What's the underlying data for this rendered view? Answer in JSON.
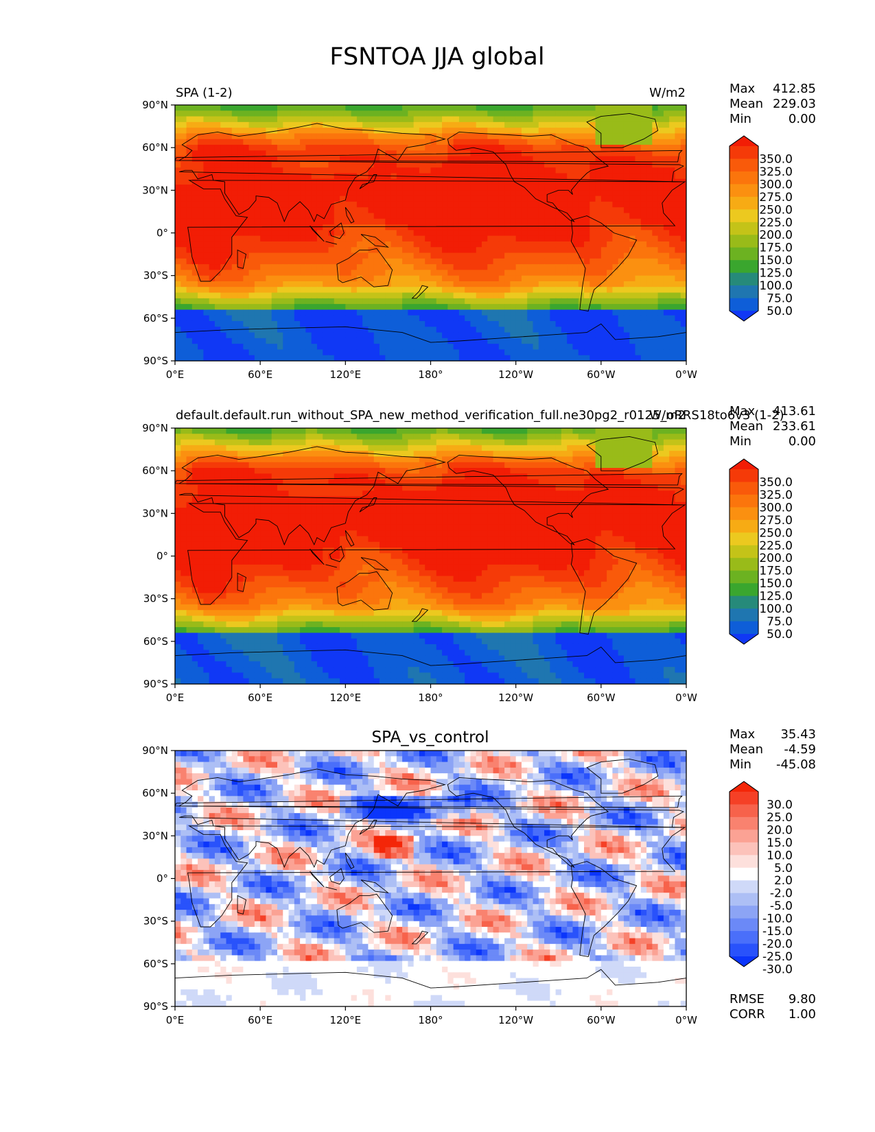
{
  "figure": {
    "title": "FSNTOA JJA global"
  },
  "colors": {
    "abs_levels": [
      "#1038f5",
      "#0e5ed8",
      "#1f76b0",
      "#268a7a",
      "#3aa62e",
      "#6cb221",
      "#99bb19",
      "#c4c318",
      "#ecc91f",
      "#f7ab14",
      "#fb9010",
      "#fb750c",
      "#f95a0a",
      "#f53a08",
      "#f21d05"
    ],
    "diff_levels": [
      "#0b35fb",
      "#2952fb",
      "#4a6ffa",
      "#6b89f7",
      "#8ca4f5",
      "#adbff5",
      "#cfd9f8",
      "#ffffff",
      "#fde0dc",
      "#fcc2ba",
      "#fba294",
      "#f9826f",
      "#f7624b",
      "#f54026",
      "#f42608"
    ],
    "coastline": "#000000"
  },
  "panels": [
    {
      "id": "test",
      "left_title": "SPA (1-2)",
      "center_title": "",
      "right_title": "W/m2",
      "stats": [
        {
          "label": "Max",
          "value": "412.85"
        },
        {
          "label": "Mean",
          "value": "229.03"
        },
        {
          "label": "Min",
          "value": "0.00"
        }
      ],
      "colorbar_ticks": [
        "350.0",
        "325.0",
        "300.0",
        "275.0",
        "250.0",
        "225.0",
        "200.0",
        "175.0",
        "150.0",
        "125.0",
        "100.0",
        "75.0",
        "50.0"
      ],
      "extra_stats": []
    },
    {
      "id": "reference",
      "left_title": "default.default.run_without_SPA_new_method_verification_full.ne30pg2_r0125_oRRS18to6v3 (1-2)",
      "center_title": "",
      "right_title": "W/m2",
      "stats": [
        {
          "label": "Max",
          "value": "413.61"
        },
        {
          "label": "Mean",
          "value": "233.61"
        },
        {
          "label": "Min",
          "value": "0.00"
        }
      ],
      "colorbar_ticks": [
        "350.0",
        "325.0",
        "300.0",
        "275.0",
        "250.0",
        "225.0",
        "200.0",
        "175.0",
        "150.0",
        "125.0",
        "100.0",
        "75.0",
        "50.0"
      ],
      "extra_stats": []
    },
    {
      "id": "difference",
      "left_title": "",
      "center_title": "SPA_vs_control",
      "right_title": "",
      "stats": [
        {
          "label": "Max",
          "value": "35.43"
        },
        {
          "label": "Mean",
          "value": "-4.59"
        },
        {
          "label": "Min",
          "value": "-45.08"
        }
      ],
      "colorbar_ticks": [
        "30.0",
        "25.0",
        "20.0",
        "15.0",
        "10.0",
        "5.0",
        "2.0",
        "-2.0",
        "-5.0",
        "-10.0",
        "-15.0",
        "-20.0",
        "-25.0",
        "-30.0"
      ],
      "extra_stats": [
        {
          "label": "RMSE",
          "value": "9.80"
        },
        {
          "label": "CORR",
          "value": "1.00"
        }
      ]
    }
  ],
  "chart_data": [
    {
      "type": "heatmap",
      "title": "SPA (1-2)",
      "units": "W/m2",
      "x_ticks": [
        "0°E",
        "60°E",
        "120°E",
        "180°",
        "120°W",
        "60°W",
        "0°W"
      ],
      "y_ticks": [
        "90°N",
        "60°N",
        "30°N",
        "0°",
        "30°S",
        "60°S",
        "90°S"
      ],
      "xlim": [
        0,
        360
      ],
      "ylim": [
        -90,
        90
      ],
      "color_levels": [
        25,
        50,
        75,
        100,
        125,
        150,
        175,
        200,
        225,
        250,
        275,
        300,
        325,
        350,
        375
      ],
      "stats": {
        "max": 412.85,
        "mean": 229.03,
        "min": 0.0
      }
    },
    {
      "type": "heatmap",
      "title": "default.default.run_without_SPA_new_method_verification_full.ne30pg2_r0125_oRRS18to6v3 (1-2)",
      "units": "W/m2",
      "x_ticks": [
        "0°E",
        "60°E",
        "120°E",
        "180°",
        "120°W",
        "60°W",
        "0°W"
      ],
      "y_ticks": [
        "90°N",
        "60°N",
        "30°N",
        "0°",
        "30°S",
        "60°S",
        "90°S"
      ],
      "xlim": [
        0,
        360
      ],
      "ylim": [
        -90,
        90
      ],
      "color_levels": [
        25,
        50,
        75,
        100,
        125,
        150,
        175,
        200,
        225,
        250,
        275,
        300,
        325,
        350,
        375
      ],
      "stats": {
        "max": 413.61,
        "mean": 233.61,
        "min": 0.0
      }
    },
    {
      "type": "heatmap",
      "title": "SPA_vs_control",
      "x_ticks": [
        "0°E",
        "60°E",
        "120°E",
        "180°",
        "120°W",
        "60°W",
        "0°W"
      ],
      "y_ticks": [
        "90°N",
        "60°N",
        "30°N",
        "0°",
        "30°S",
        "60°S",
        "90°S"
      ],
      "xlim": [
        0,
        360
      ],
      "ylim": [
        -90,
        90
      ],
      "color_levels": [
        -30,
        -25,
        -20,
        -15,
        -10,
        -5,
        -2,
        2,
        5,
        10,
        15,
        20,
        25,
        30
      ],
      "stats": {
        "max": 35.43,
        "mean": -4.59,
        "min": -45.08,
        "rmse": 9.8,
        "corr": 1.0
      }
    }
  ]
}
